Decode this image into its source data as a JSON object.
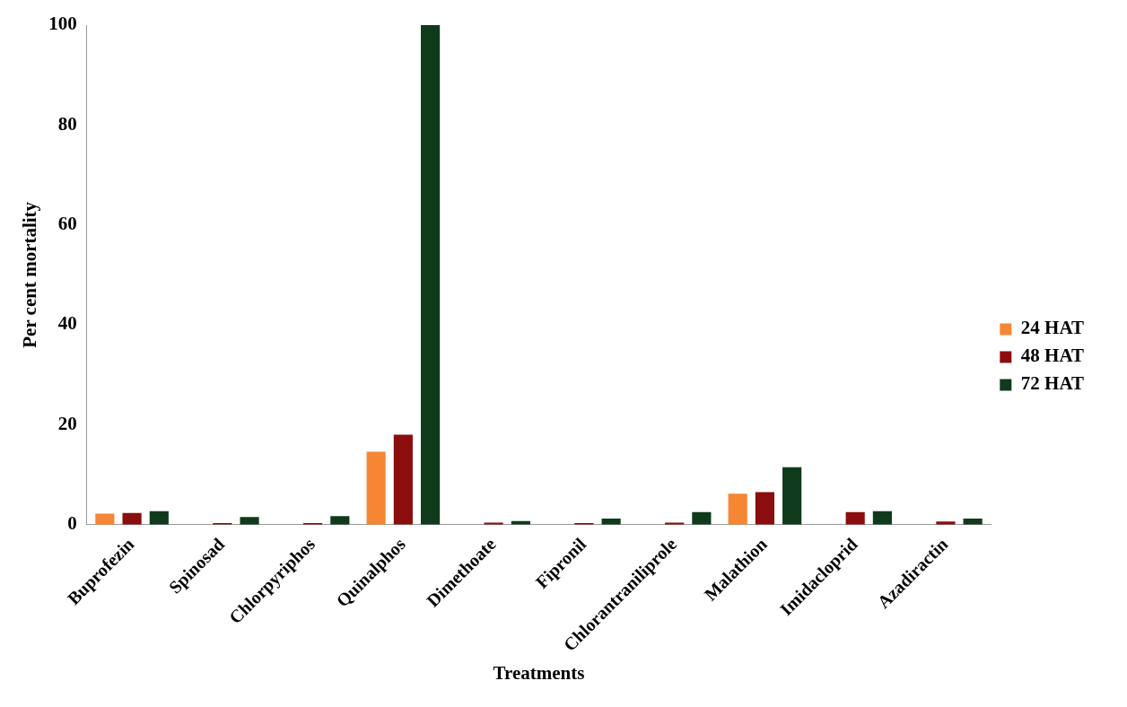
{
  "chart_data": {
    "type": "bar",
    "xlabel": "Treatments",
    "ylabel": "Per cent mortality",
    "categories": [
      "Buprofezin",
      "Spinosad",
      "Chlorpyriphos",
      "Quinalphos",
      "Dimethoate",
      "Fipronil",
      "Chlorantraniliprole",
      "Malathion",
      "Imidacloprid",
      "Azadiractin"
    ],
    "series": [
      {
        "name": "24 HAT",
        "color": "#f58634",
        "values": [
          2.2,
          0,
          0,
          14.6,
          0,
          0,
          0,
          6.2,
          0,
          0
        ]
      },
      {
        "name": "48 HAT",
        "color": "#8b0d0d",
        "values": [
          2.3,
          0.3,
          0.3,
          18,
          0.4,
          0.3,
          0.4,
          6.5,
          2.5,
          0.6
        ]
      },
      {
        "name": "72 HAT",
        "color": "#0f3a1c",
        "values": [
          2.7,
          1.5,
          1.7,
          100,
          0.7,
          1.2,
          2.5,
          11.5,
          2.7,
          1.2
        ]
      }
    ],
    "ylim": [
      0,
      100
    ],
    "yticks": [
      0,
      20,
      40,
      60,
      80,
      100
    ],
    "grid": false,
    "legend": "right"
  }
}
